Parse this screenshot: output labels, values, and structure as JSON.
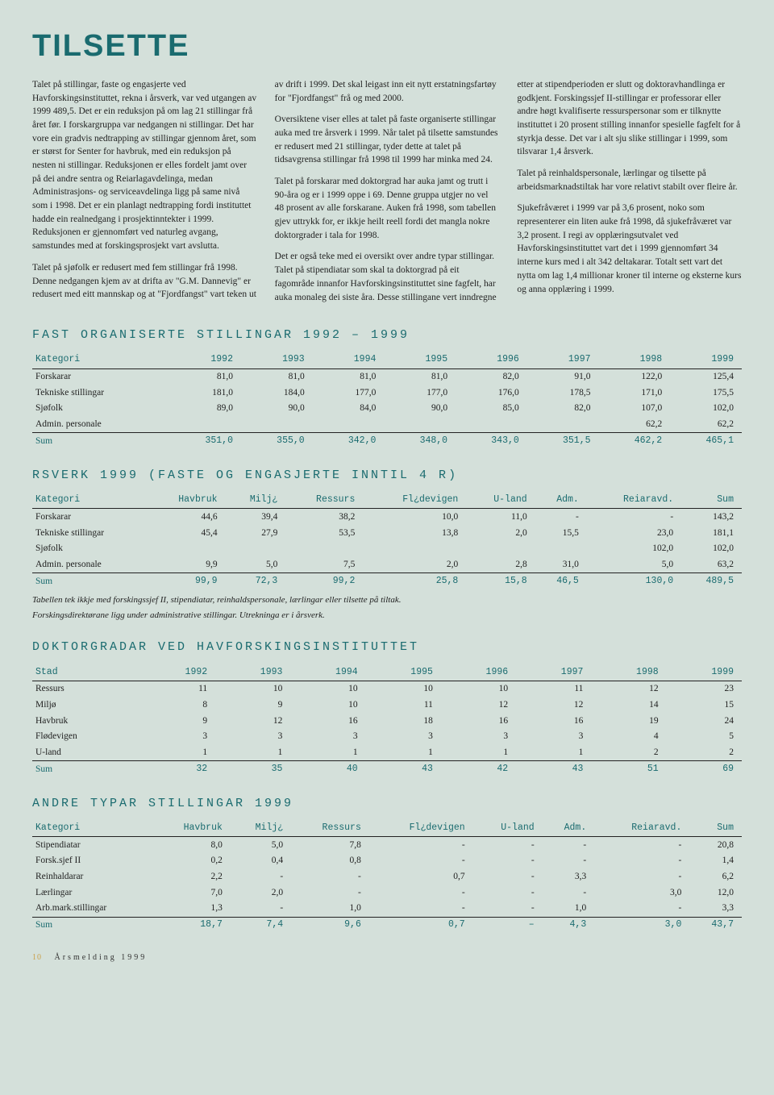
{
  "title": "TILSETTE",
  "body": {
    "p1": "Talet på stillingar, faste og engasjerte ved Havforskingsinstituttet, rekna i årsverk, var ved utgangen av 1999 489,5. Det er ein reduksjon på om lag 21 stillingar frå året før. I forskargruppa var nedgangen ni stillingar. Det har vore ein gradvis nedtrapping av stillingar gjennom året, som er størst for Senter for havbruk, med ein reduksjon på nesten ni stillingar. Reduksjonen er elles fordelt jamt over på dei andre sentra og Reiarlagavdelinga, medan Administrasjons- og serviceavdelinga ligg på same nivå som i 1998. Det er ein planlagt nedtrapping fordi instituttet hadde ein realnedgang i prosjektinntekter i 1999. Reduksjonen er gjennomført ved naturleg avgang, samstundes med at forskingsprosjekt vart avslutta.",
    "p2": "Talet på sjøfolk er redusert med fem stillingar frå 1998. Denne nedgangen kjem av at drifta av \"G.M. Dannevig\" er redusert med eitt mannskap og at \"Fjordfangst\" vart teken ut av drift i 1999. Det skal leigast inn eit nytt erstatningsfartøy for \"Fjordfangst\" frå og med 2000.",
    "p3": "Oversiktene viser elles at talet på faste organiserte stillingar auka med tre årsverk i 1999. Når talet på tilsette samstundes er redusert med 21 stillingar, tyder dette at talet på tidsavgrensa stillingar frå 1998 til 1999 har minka med 24.",
    "p4": "Talet på forskarar med doktorgrad har auka jamt og trutt i 90-åra og er i 1999 oppe i 69. Denne gruppa utgjer no vel 48 prosent av alle forskarane. Auken frå 1998, som tabellen gjev uttrykk for, er ikkje heilt reell fordi det mangla nokre doktorgrader i tala for 1998.",
    "p5": "Det er også teke med ei oversikt over andre typar stillingar. Talet på stipendiatar som skal ta doktorgrad på eit fagområde innanfor Havforskingsinstituttet sine fagfelt, har auka monaleg dei siste åra. Desse stillingane vert inndregne etter at stipendperioden er slutt og doktoravhandlinga er godkjent. Forskingssjef II-stillingar er professorar eller andre høgt kvalifiserte ressurspersonar som er tilknytte instituttet i 20 prosent stilling innanfor spesielle fagfelt for å styrkja desse. Det var i alt sju slike stillingar i 1999, som tilsvarar 1,4 årsverk.",
    "p6": "Talet på reinhaldspersonale, lærlingar og tilsette på arbeidsmarknadstiltak har vore relativt stabilt over fleire år.",
    "p7": "Sjukefråværet i 1999 var på 3,6 prosent, noko som representerer ein liten auke frå 1998, då sjukefråværet var 3,2 prosent. I regi av opplæringsutvalet ved Havforskingsinstituttet vart det i 1999 gjennomført 34 interne kurs med i alt 342 deltakarar. Totalt sett vart det nytta om lag 1,4 millionar kroner til interne og eksterne kurs og anna opplæring i 1999."
  },
  "table1": {
    "title": "FAST ORGANISERTE STILLINGAR 1992 – 1999",
    "headers": [
      "Kategori",
      "1992",
      "1993",
      "1994",
      "1995",
      "1996",
      "1997",
      "1998",
      "1999"
    ],
    "rows": [
      [
        "Forskarar",
        "81,0",
        "81,0",
        "81,0",
        "81,0",
        "82,0",
        "91,0",
        "122,0",
        "125,4"
      ],
      [
        "Tekniske stillingar",
        "181,0",
        "184,0",
        "177,0",
        "177,0",
        "176,0",
        "178,5",
        "171,0",
        "175,5"
      ],
      [
        "Sjøfolk",
        "89,0",
        "90,0",
        "84,0",
        "90,0",
        "85,0",
        "82,0",
        "107,0",
        "102,0"
      ],
      [
        "Admin. personale",
        "",
        "",
        "",
        "",
        "",
        "",
        "62,2",
        "62,2"
      ]
    ],
    "sum": [
      "Sum",
      "351,0",
      "355,0",
      "342,0",
      "348,0",
      "343,0",
      "351,5",
      "462,2",
      "465,1"
    ]
  },
  "table2": {
    "title": "RSVERK 1999 (FASTE OG ENGASJERTE INNTIL 4  R)",
    "headers": [
      "Kategori",
      "Havbruk",
      "Milj¿",
      "Ressurs",
      "Fl¿devigen",
      "U-land",
      "Adm.",
      "Reiaravd.",
      "Sum"
    ],
    "rows": [
      [
        "Forskarar",
        "44,6",
        "39,4",
        "38,2",
        "10,0",
        "11,0",
        "-",
        "-",
        "143,2"
      ],
      [
        "Tekniske stillingar",
        "45,4",
        "27,9",
        "53,5",
        "13,8",
        "2,0",
        "15,5",
        "23,0",
        "181,1"
      ],
      [
        "Sjøfolk",
        "",
        "",
        "",
        "",
        "",
        "",
        "102,0",
        "102,0"
      ],
      [
        "Admin. personale",
        "9,9",
        "5,0",
        "7,5",
        "2,0",
        "2,8",
        "31,0",
        "5,0",
        "63,2"
      ]
    ],
    "sum": [
      "Sum",
      "99,9",
      "72,3",
      "99,2",
      "25,8",
      "15,8",
      "46,5",
      "130,0",
      "489,5"
    ],
    "footnote1": "Tabellen tek ikkje med forskingssjef II, stipendiatar, reinhaldspersonale, lærlingar eller tilsette på tiltak.",
    "footnote2": "Forskingsdirektørane ligg under administrative stillingar. Utrekninga er i årsverk."
  },
  "table3": {
    "title": "DOKTORGRADAR VED HAVFORSKINGSINSTITUTTET",
    "headers": [
      "Stad",
      "1992",
      "1993",
      "1994",
      "1995",
      "1996",
      "1997",
      "1998",
      "1999"
    ],
    "rows": [
      [
        "Ressurs",
        "11",
        "10",
        "10",
        "10",
        "10",
        "11",
        "12",
        "23"
      ],
      [
        "Miljø",
        "8",
        "9",
        "10",
        "11",
        "12",
        "12",
        "14",
        "15"
      ],
      [
        "Havbruk",
        "9",
        "12",
        "16",
        "18",
        "16",
        "16",
        "19",
        "24"
      ],
      [
        "Flødevigen",
        "3",
        "3",
        "3",
        "3",
        "3",
        "3",
        "4",
        "5"
      ],
      [
        "U-land",
        "1",
        "1",
        "1",
        "1",
        "1",
        "1",
        "2",
        "2"
      ]
    ],
    "sum": [
      "Sum",
      "32",
      "35",
      "40",
      "43",
      "42",
      "43",
      "51",
      "69"
    ]
  },
  "table4": {
    "title": "ANDRE TYPAR STILLINGAR 1999",
    "headers": [
      "Kategori",
      "Havbruk",
      "Milj¿",
      "Ressurs",
      "Fl¿devigen",
      "U-land",
      "Adm.",
      "Reiaravd.",
      "Sum"
    ],
    "rows": [
      [
        "Stipendiatar",
        "8,0",
        "5,0",
        "7,8",
        "-",
        "-",
        "-",
        "-",
        "20,8"
      ],
      [
        "Forsk.sjef II",
        "0,2",
        "0,4",
        "0,8",
        "-",
        "-",
        "-",
        "-",
        "1,4"
      ],
      [
        "Reinhaldarar",
        "2,2",
        "-",
        "-",
        "0,7",
        "-",
        "3,3",
        "-",
        "6,2"
      ],
      [
        "Lærlingar",
        "7,0",
        "2,0",
        "-",
        "-",
        "-",
        "-",
        "3,0",
        "12,0"
      ],
      [
        "Arb.mark.stillingar",
        "1,3",
        "-",
        "1,0",
        "-",
        "-",
        "1,0",
        "-",
        "3,3"
      ]
    ],
    "sum": [
      "Sum",
      "18,7",
      "7,4",
      "9,6",
      "0,7",
      "–",
      "4,3",
      "3,0",
      "43,7"
    ]
  },
  "footer": {
    "page": "10",
    "text": "Årsmelding 1999"
  }
}
